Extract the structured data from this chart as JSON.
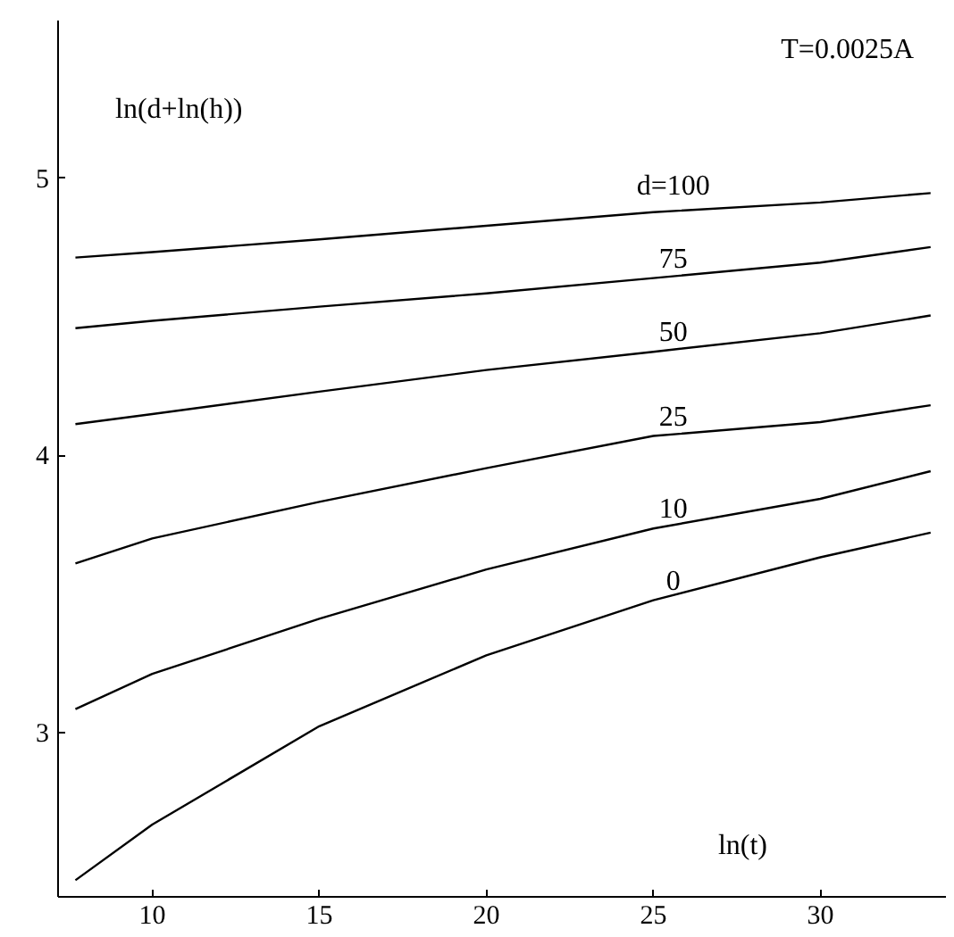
{
  "chart_data": {
    "type": "line",
    "title": "T=0.0025A",
    "xlabel": "ln(t)",
    "ylabel": "ln(d+ln(h))",
    "x": [
      7.7,
      10,
      15,
      20,
      25,
      30,
      33.3
    ],
    "series": [
      {
        "name": "d=100",
        "color": "#000000",
        "values": [
          4.714,
          4.734,
          4.78,
          4.829,
          4.878,
          4.913,
          4.947
        ]
      },
      {
        "name": "75",
        "color": "#000000",
        "values": [
          4.459,
          4.486,
          4.537,
          4.585,
          4.64,
          4.696,
          4.752
        ]
      },
      {
        "name": "50",
        "color": "#000000",
        "values": [
          4.113,
          4.149,
          4.23,
          4.308,
          4.374,
          4.441,
          4.505
        ]
      },
      {
        "name": "25",
        "color": "#000000",
        "values": [
          3.61,
          3.7,
          3.832,
          3.954,
          4.07,
          4.12,
          4.181
        ]
      },
      {
        "name": "10",
        "color": "#000000",
        "values": [
          3.084,
          3.211,
          3.41,
          3.588,
          3.736,
          3.843,
          3.943
        ]
      },
      {
        "name": "0",
        "color": "#000000",
        "values": [
          2.466,
          2.667,
          3.022,
          3.278,
          3.477,
          3.632,
          3.721
        ]
      }
    ],
    "xlim": [
      7.18,
      33.76
    ],
    "ylim": [
      2.406,
      5.57
    ],
    "xticks": [
      10,
      15,
      20,
      25,
      30
    ],
    "yticks": [
      3,
      4,
      5
    ],
    "grid": false,
    "marker": "none",
    "line_style": "solid"
  }
}
